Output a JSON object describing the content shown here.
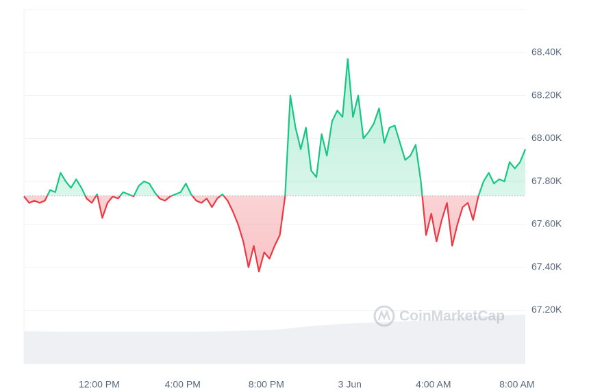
{
  "chart_data": {
    "type": "line",
    "xlim": [
      0,
      96
    ],
    "xticks": [
      {
        "value": 14.4,
        "label": "12:00 PM"
      },
      {
        "value": 30.4,
        "label": "4:00 PM"
      },
      {
        "value": 46.4,
        "label": "8:00 PM"
      },
      {
        "value": 62.4,
        "label": "3 Jun"
      },
      {
        "value": 78.4,
        "label": "4:00 AM"
      },
      {
        "value": 94.4,
        "label": "8:00 AM"
      }
    ],
    "ylim": [
      66950,
      68600
    ],
    "yticks": [
      {
        "value": 67200,
        "label": "67.20K"
      },
      {
        "value": 67400,
        "label": "67.40K"
      },
      {
        "value": 67600,
        "label": "67.60K"
      },
      {
        "value": 67800,
        "label": "67.80K"
      },
      {
        "value": 68000,
        "label": "68.00K"
      },
      {
        "value": 68200,
        "label": "68.20K"
      },
      {
        "value": 68400,
        "label": "68.40K"
      }
    ],
    "grid": true,
    "baseline": 67733,
    "up_color": "#16c784",
    "down_color": "#ea3943",
    "values": [
      67730,
      67700,
      67710,
      67700,
      67710,
      67760,
      67750,
      67840,
      67800,
      67770,
      67810,
      67770,
      67720,
      67700,
      67740,
      67630,
      67700,
      67730,
      67720,
      67750,
      67740,
      67730,
      67780,
      67800,
      67790,
      67750,
      67720,
      67710,
      67730,
      67740,
      67750,
      67790,
      67740,
      67710,
      67700,
      67720,
      67680,
      67720,
      67740,
      67710,
      67660,
      67600,
      67520,
      67400,
      67500,
      67380,
      67470,
      67440,
      67500,
      67550,
      67730,
      68200,
      68050,
      67950,
      68050,
      67850,
      67820,
      68020,
      67920,
      68080,
      68130,
      68100,
      68370,
      68100,
      68200,
      68000,
      68030,
      68070,
      68140,
      67980,
      68050,
      68060,
      67980,
      67900,
      67920,
      67970,
      67800,
      67550,
      67650,
      67520,
      67620,
      67700,
      67500,
      67600,
      67680,
      67700,
      67620,
      67730,
      67800,
      67840,
      67790,
      67810,
      67800,
      67890,
      67860,
      67890,
      67950
    ],
    "volume": {
      "color": "#eef0f4",
      "ylim": [
        0,
        100
      ],
      "x": [
        0,
        8,
        16,
        24,
        32,
        40,
        48,
        56,
        64,
        72,
        80,
        88,
        96
      ],
      "values": [
        48,
        47,
        47,
        47,
        47,
        48,
        50,
        56,
        60,
        62,
        65,
        70,
        72
      ]
    },
    "watermark": "CoinMarketCap"
  }
}
